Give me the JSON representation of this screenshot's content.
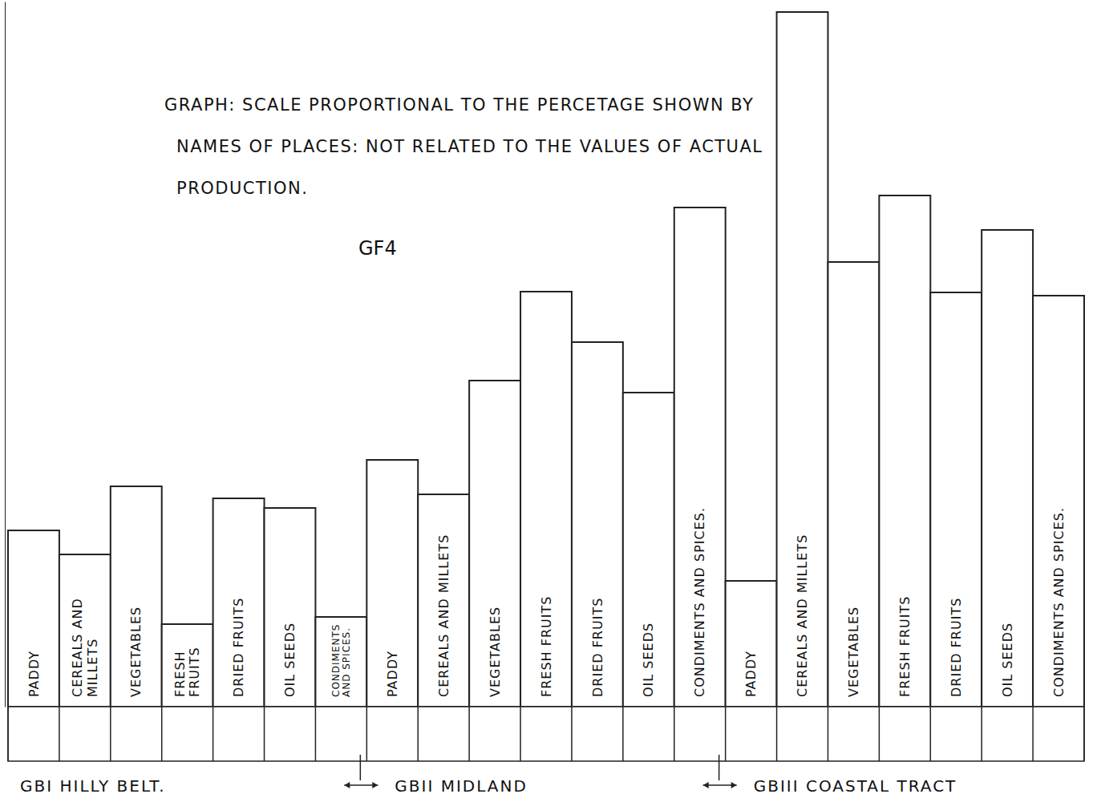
{
  "chart_data": {
    "type": "bar",
    "title": "GRAPH: SCALE PROPORTIONAL TO THE PERCETAGE SHOWN BY NAMES OF PLACES: NOT RELATED TO THE VALUES OF ACTUAL PRODUCTION.",
    "annotations": [
      "GF4"
    ],
    "categories": [
      "PADDY",
      "CEREALS AND MILLETS",
      "VEGETABLES",
      "FRESH FRUITS",
      "DRIED FRUITS",
      "OIL SEEDS",
      "CONDIMENTS AND SPICES."
    ],
    "series": [
      {
        "name": "GBI HILLY BELT.",
        "color": "#ffffff",
        "values": [
          220,
          190,
          275,
          103,
          260,
          248,
          112
        ]
      },
      {
        "name": "GBII MIDLAND",
        "color": "#ffffff",
        "values": [
          308,
          265,
          407,
          518,
          455,
          392,
          623
        ]
      },
      {
        "name": "GBIII COASTAL TRACT",
        "color": "#ffffff",
        "values": [
          157,
          867,
          555,
          638,
          517,
          595,
          513
        ]
      }
    ],
    "ylim": [
      0,
      880
    ],
    "yticks": [],
    "tick_labels": false,
    "grid": false
  }
}
